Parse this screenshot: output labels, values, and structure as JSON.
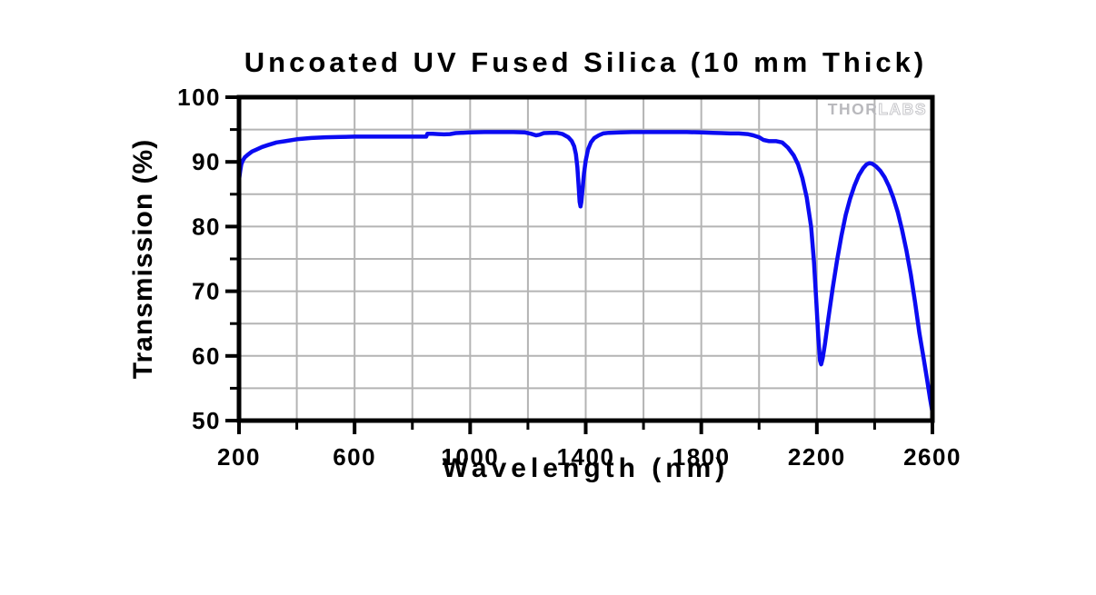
{
  "page": {
    "background": "#ffffff"
  },
  "watermark": {
    "brand_solid": "THOR",
    "brand_outline": "LABS"
  },
  "chart_data": {
    "type": "line",
    "title": "Uncoated UV Fused Silica (10 mm Thick)",
    "xlabel": "Wavelength (nm)",
    "ylabel": "Transmission (%)",
    "xlim": [
      200,
      2600
    ],
    "ylim": [
      50,
      100
    ],
    "x_major_ticks": [
      200,
      600,
      1000,
      1400,
      1800,
      2200,
      2600
    ],
    "x_minor_ticks": [
      400,
      800,
      1200,
      1600,
      2000,
      2400
    ],
    "y_major_ticks": [
      50,
      60,
      70,
      80,
      90,
      100
    ],
    "y_minor_ticks": [
      55,
      65,
      75,
      85,
      95
    ],
    "grid": {
      "x_interval_nm": 200,
      "y_interval_pct": 5,
      "color": "#b4b4b4"
    },
    "legend": {
      "visible": false
    },
    "colors": {
      "line": "#0b0bf2",
      "grid": "#b4b4b4",
      "axis": "#000000",
      "watermark": "#c6c6c9"
    },
    "series": [
      {
        "name": "Transmission",
        "points": [
          [
            200,
            87.2
          ],
          [
            204,
            88.6
          ],
          [
            208,
            89.6
          ],
          [
            213,
            90.2
          ],
          [
            220,
            90.7
          ],
          [
            230,
            91.1
          ],
          [
            245,
            91.6
          ],
          [
            260,
            91.9
          ],
          [
            280,
            92.3
          ],
          [
            300,
            92.6
          ],
          [
            330,
            93.0
          ],
          [
            360,
            93.2
          ],
          [
            400,
            93.5
          ],
          [
            450,
            93.7
          ],
          [
            500,
            93.8
          ],
          [
            550,
            93.85
          ],
          [
            600,
            93.9
          ],
          [
            650,
            93.9
          ],
          [
            700,
            93.9
          ],
          [
            750,
            93.9
          ],
          [
            800,
            93.9
          ],
          [
            830,
            93.9
          ],
          [
            848,
            93.9
          ],
          [
            852,
            94.35
          ],
          [
            870,
            94.35
          ],
          [
            890,
            94.3
          ],
          [
            910,
            94.25
          ],
          [
            930,
            94.3
          ],
          [
            950,
            94.45
          ],
          [
            1000,
            94.55
          ],
          [
            1050,
            94.6
          ],
          [
            1100,
            94.6
          ],
          [
            1150,
            94.6
          ],
          [
            1190,
            94.55
          ],
          [
            1210,
            94.35
          ],
          [
            1228,
            94.1
          ],
          [
            1240,
            94.2
          ],
          [
            1255,
            94.45
          ],
          [
            1275,
            94.5
          ],
          [
            1300,
            94.5
          ],
          [
            1320,
            94.3
          ],
          [
            1340,
            93.8
          ],
          [
            1352,
            93.2
          ],
          [
            1360,
            92.4
          ],
          [
            1366,
            91.2
          ],
          [
            1371,
            89.2
          ],
          [
            1375,
            86.5
          ],
          [
            1379,
            83.8
          ],
          [
            1382,
            83.1
          ],
          [
            1385,
            83.8
          ],
          [
            1389,
            85.8
          ],
          [
            1394,
            88.2
          ],
          [
            1400,
            90.2
          ],
          [
            1408,
            91.9
          ],
          [
            1418,
            93.0
          ],
          [
            1430,
            93.7
          ],
          [
            1445,
            94.1
          ],
          [
            1460,
            94.4
          ],
          [
            1480,
            94.5
          ],
          [
            1520,
            94.55
          ],
          [
            1560,
            94.6
          ],
          [
            1600,
            94.6
          ],
          [
            1650,
            94.6
          ],
          [
            1700,
            94.6
          ],
          [
            1750,
            94.6
          ],
          [
            1800,
            94.55
          ],
          [
            1840,
            94.5
          ],
          [
            1870,
            94.45
          ],
          [
            1900,
            94.4
          ],
          [
            1930,
            94.4
          ],
          [
            1960,
            94.3
          ],
          [
            1980,
            94.1
          ],
          [
            2000,
            93.8
          ],
          [
            2015,
            93.4
          ],
          [
            2035,
            93.2
          ],
          [
            2060,
            93.2
          ],
          [
            2080,
            93.0
          ],
          [
            2100,
            92.2
          ],
          [
            2120,
            91.0
          ],
          [
            2135,
            89.6
          ],
          [
            2150,
            87.5
          ],
          [
            2165,
            84.5
          ],
          [
            2180,
            80.0
          ],
          [
            2190,
            74.5
          ],
          [
            2198,
            68.5
          ],
          [
            2205,
            63.0
          ],
          [
            2211,
            59.3
          ],
          [
            2215,
            58.7
          ],
          [
            2220,
            59.6
          ],
          [
            2228,
            61.8
          ],
          [
            2240,
            65.8
          ],
          [
            2255,
            70.5
          ],
          [
            2270,
            74.8
          ],
          [
            2285,
            78.6
          ],
          [
            2300,
            81.8
          ],
          [
            2315,
            84.3
          ],
          [
            2330,
            86.3
          ],
          [
            2345,
            87.9
          ],
          [
            2360,
            89.0
          ],
          [
            2372,
            89.6
          ],
          [
            2382,
            89.8
          ],
          [
            2392,
            89.7
          ],
          [
            2405,
            89.3
          ],
          [
            2420,
            88.6
          ],
          [
            2435,
            87.6
          ],
          [
            2450,
            86.2
          ],
          [
            2465,
            84.4
          ],
          [
            2480,
            82.2
          ],
          [
            2495,
            79.5
          ],
          [
            2510,
            76.3
          ],
          [
            2525,
            72.6
          ],
          [
            2540,
            68.3
          ],
          [
            2555,
            63.5
          ],
          [
            2570,
            59.5
          ],
          [
            2582,
            56.2
          ],
          [
            2592,
            53.3
          ],
          [
            2600,
            51.3
          ]
        ]
      }
    ]
  }
}
